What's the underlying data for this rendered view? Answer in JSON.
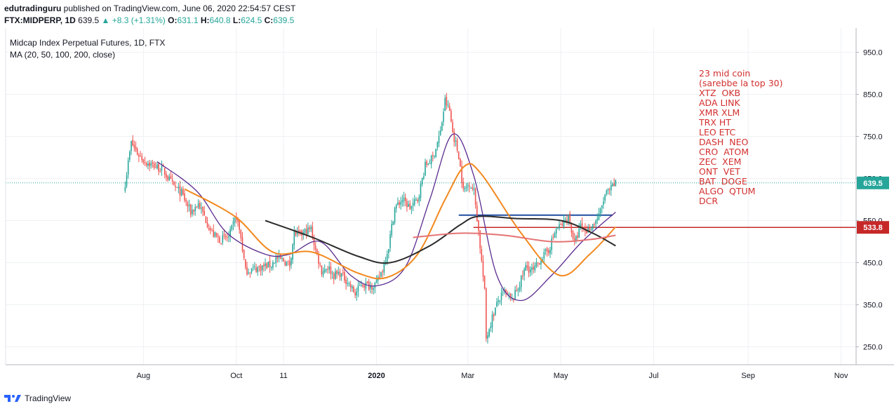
{
  "header": {
    "publisher": "edutradinguru",
    "published_text": "published on TradingView.com, June 06, 2020 22:54:57 CEST",
    "symbol": "FTX:MIDPERP, 1D",
    "last": "639.5",
    "change": "▲ +8.3 (+1.31%)",
    "o_label": "O:",
    "o_value": "631.1",
    "h_label": "H:",
    "h_value": "640.8",
    "l_label": "L:",
    "l_value": "624.5",
    "c_label": "C:",
    "c_value": "639.5"
  },
  "legend": {
    "title": "Midcap Index Perpetual Futures, 1D, FTX",
    "indicator": "MA (20, 50, 100, 200, close)"
  },
  "note_lines": [
    "23 mid coin",
    "(sarebbe la top 30)",
    "XTZ  OKB",
    "ADA LINK",
    "XMR XLM",
    "TRX HT",
    "LEO ETC",
    "DASH  NEO",
    "CRO  ATOM",
    "ZEC  XEM",
    "ONT  VET",
    "BAT  DOGE",
    "ALGO  QTUM",
    "DCR"
  ],
  "footer": {
    "brand": "TradingView"
  },
  "colors": {
    "up": "#26a69a",
    "down": "#ef5350",
    "ma20": "#5b2c8f",
    "ma50": "#f2891f",
    "ma100": "#2b2b2b",
    "ma200": "#e57373",
    "resistance": "#1e4fa0",
    "support": "#c62828",
    "last_price": "#26a69a"
  },
  "chart_data": {
    "type": "candlestick",
    "title": "Midcap Index Perpetual Futures, 1D, FTX",
    "y_ticks": [
      950,
      850,
      750,
      650,
      550,
      450,
      350,
      250
    ],
    "y_tick_labels": [
      "950.0",
      "850.0",
      "750.0",
      "650.0",
      "550.0",
      "450.0",
      "350.0",
      "250.0"
    ],
    "ylim": [
      160,
      955
    ],
    "x_ticks": [
      "Aug",
      "Oct",
      "11",
      "2020",
      "Mar",
      "May",
      "Jul",
      "Sep",
      "Nov"
    ],
    "last_price_label": "639.5",
    "horizontal_line_label": "533.8",
    "horizontal_line_value": 533.8,
    "resistance_level": 563,
    "close_series": [
      {
        "date": "2019-07-20",
        "close": 640
      },
      {
        "date": "2019-07-24",
        "close": 735
      },
      {
        "date": "2019-07-28",
        "close": 710
      },
      {
        "date": "2019-08-02",
        "close": 690
      },
      {
        "date": "2019-08-08",
        "close": 680
      },
      {
        "date": "2019-08-14",
        "close": 670
      },
      {
        "date": "2019-08-20",
        "close": 635
      },
      {
        "date": "2019-08-26",
        "close": 615
      },
      {
        "date": "2019-09-01",
        "close": 570
      },
      {
        "date": "2019-09-06",
        "close": 590
      },
      {
        "date": "2019-09-10",
        "close": 560
      },
      {
        "date": "2019-09-15",
        "close": 520
      },
      {
        "date": "2019-09-20",
        "close": 505
      },
      {
        "date": "2019-09-26",
        "close": 510
      },
      {
        "date": "2019-10-01",
        "close": 560
      },
      {
        "date": "2019-10-04",
        "close": 510
      },
      {
        "date": "2019-10-07",
        "close": 430
      },
      {
        "date": "2019-10-12",
        "close": 435
      },
      {
        "date": "2019-10-18",
        "close": 440
      },
      {
        "date": "2019-10-24",
        "close": 445
      },
      {
        "date": "2019-10-27",
        "close": 460
      },
      {
        "date": "2019-11-01",
        "close": 455
      },
      {
        "date": "2019-11-05",
        "close": 445
      },
      {
        "date": "2019-11-08",
        "close": 520
      },
      {
        "date": "2019-11-12",
        "close": 515
      },
      {
        "date": "2019-11-16",
        "close": 525
      },
      {
        "date": "2019-11-19",
        "close": 530
      },
      {
        "date": "2019-11-22",
        "close": 480
      },
      {
        "date": "2019-11-26",
        "close": 430
      },
      {
        "date": "2019-11-30",
        "close": 440
      },
      {
        "date": "2019-12-04",
        "close": 420
      },
      {
        "date": "2019-12-08",
        "close": 425
      },
      {
        "date": "2019-12-13",
        "close": 405
      },
      {
        "date": "2019-12-18",
        "close": 375
      },
      {
        "date": "2019-12-22",
        "close": 400
      },
      {
        "date": "2019-12-28",
        "close": 395
      },
      {
        "date": "2020-01-01",
        "close": 400
      },
      {
        "date": "2020-01-05",
        "close": 435
      },
      {
        "date": "2020-01-09",
        "close": 490
      },
      {
        "date": "2020-01-13",
        "close": 580
      },
      {
        "date": "2020-01-18",
        "close": 600
      },
      {
        "date": "2020-01-23",
        "close": 580
      },
      {
        "date": "2020-01-28",
        "close": 600
      },
      {
        "date": "2020-02-02",
        "close": 680
      },
      {
        "date": "2020-02-07",
        "close": 700
      },
      {
        "date": "2020-02-12",
        "close": 760
      },
      {
        "date": "2020-02-15",
        "close": 835
      },
      {
        "date": "2020-02-18",
        "close": 810
      },
      {
        "date": "2020-02-20",
        "close": 760
      },
      {
        "date": "2020-02-24",
        "close": 705
      },
      {
        "date": "2020-02-27",
        "close": 620
      },
      {
        "date": "2020-03-02",
        "close": 640
      },
      {
        "date": "2020-03-05",
        "close": 620
      },
      {
        "date": "2020-03-08",
        "close": 525
      },
      {
        "date": "2020-03-12",
        "close": 380
      },
      {
        "date": "2020-03-13",
        "close": 270
      },
      {
        "date": "2020-03-17",
        "close": 320
      },
      {
        "date": "2020-03-21",
        "close": 360
      },
      {
        "date": "2020-03-25",
        "close": 380
      },
      {
        "date": "2020-03-30",
        "close": 360
      },
      {
        "date": "2020-04-04",
        "close": 400
      },
      {
        "date": "2020-04-08",
        "close": 440
      },
      {
        "date": "2020-04-13",
        "close": 430
      },
      {
        "date": "2020-04-18",
        "close": 460
      },
      {
        "date": "2020-04-23",
        "close": 480
      },
      {
        "date": "2020-04-28",
        "close": 530
      },
      {
        "date": "2020-05-02",
        "close": 540
      },
      {
        "date": "2020-05-06",
        "close": 560
      },
      {
        "date": "2020-05-10",
        "close": 495
      },
      {
        "date": "2020-05-14",
        "close": 535
      },
      {
        "date": "2020-05-18",
        "close": 525
      },
      {
        "date": "2020-05-22",
        "close": 540
      },
      {
        "date": "2020-05-26",
        "close": 560
      },
      {
        "date": "2020-05-30",
        "close": 610
      },
      {
        "date": "2020-06-03",
        "close": 625
      },
      {
        "date": "2020-06-06",
        "close": 639.5
      }
    ],
    "moving_averages": [
      {
        "name": "MA 20",
        "color": "#5b2c8f",
        "points": [
          {
            "date": "2019-08-10",
            "value": 690
          },
          {
            "date": "2019-09-05",
            "value": 620
          },
          {
            "date": "2019-09-25",
            "value": 520
          },
          {
            "date": "2019-10-20",
            "value": 470
          },
          {
            "date": "2019-11-05",
            "value": 470
          },
          {
            "date": "2019-11-25",
            "value": 500
          },
          {
            "date": "2019-12-15",
            "value": 420
          },
          {
            "date": "2020-01-01",
            "value": 395
          },
          {
            "date": "2020-01-20",
            "value": 440
          },
          {
            "date": "2020-02-05",
            "value": 600
          },
          {
            "date": "2020-02-20",
            "value": 755
          },
          {
            "date": "2020-03-05",
            "value": 655
          },
          {
            "date": "2020-03-20",
            "value": 420
          },
          {
            "date": "2020-04-05",
            "value": 360
          },
          {
            "date": "2020-04-25",
            "value": 420
          },
          {
            "date": "2020-05-15",
            "value": 500
          },
          {
            "date": "2020-06-06",
            "value": 570
          }
        ]
      },
      {
        "name": "MA 50",
        "color": "#f2891f",
        "points": [
          {
            "date": "2019-08-28",
            "value": 625
          },
          {
            "date": "2019-09-30",
            "value": 560
          },
          {
            "date": "2019-10-25",
            "value": 475
          },
          {
            "date": "2019-11-20",
            "value": 475
          },
          {
            "date": "2019-12-20",
            "value": 425
          },
          {
            "date": "2020-01-08",
            "value": 415
          },
          {
            "date": "2020-01-28",
            "value": 470
          },
          {
            "date": "2020-02-15",
            "value": 600
          },
          {
            "date": "2020-02-28",
            "value": 680
          },
          {
            "date": "2020-03-10",
            "value": 660
          },
          {
            "date": "2020-04-05",
            "value": 520
          },
          {
            "date": "2020-04-30",
            "value": 420
          },
          {
            "date": "2020-05-20",
            "value": 470
          },
          {
            "date": "2020-06-06",
            "value": 535
          }
        ]
      },
      {
        "name": "MA 100",
        "color": "#2b2b2b",
        "points": [
          {
            "date": "2019-10-20",
            "value": 550
          },
          {
            "date": "2019-11-20",
            "value": 510
          },
          {
            "date": "2019-12-20",
            "value": 465
          },
          {
            "date": "2020-01-10",
            "value": 450
          },
          {
            "date": "2020-02-05",
            "value": 490
          },
          {
            "date": "2020-02-25",
            "value": 540
          },
          {
            "date": "2020-03-08",
            "value": 560
          },
          {
            "date": "2020-04-01",
            "value": 555
          },
          {
            "date": "2020-05-01",
            "value": 550
          },
          {
            "date": "2020-05-22",
            "value": 520
          },
          {
            "date": "2020-06-06",
            "value": 490
          }
        ]
      },
      {
        "name": "MA 200",
        "color": "#e57373",
        "points": [
          {
            "date": "2020-01-25",
            "value": 510
          },
          {
            "date": "2020-02-25",
            "value": 520
          },
          {
            "date": "2020-03-25",
            "value": 515
          },
          {
            "date": "2020-04-25",
            "value": 500
          },
          {
            "date": "2020-05-20",
            "value": 505
          },
          {
            "date": "2020-06-06",
            "value": 515
          }
        ]
      }
    ]
  }
}
